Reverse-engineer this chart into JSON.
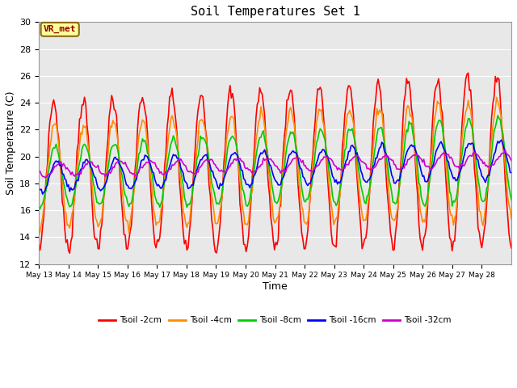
{
  "title": "Soil Temperatures Set 1",
  "xlabel": "Time",
  "ylabel": "Soil Temperature (C)",
  "ylim": [
    12,
    30
  ],
  "fig_bg_color": "#ffffff",
  "plot_bg_color": "#e8e8e8",
  "annotation_text": "VR_met",
  "annotation_box_color": "#ffff99",
  "annotation_box_edge": "#8b6914",
  "x_tick_labels": [
    "May 13",
    "May 14",
    "May 15",
    "May 16",
    "May 17",
    "May 18",
    "May 19",
    "May 20",
    "May 21",
    "May 22",
    "May 23",
    "May 24",
    "May 25",
    "May 26",
    "May 27",
    "May 28"
  ],
  "series": {
    "Tsoil -2cm": {
      "color": "#ff0000",
      "linewidth": 1.2
    },
    "Tsoil -4cm": {
      "color": "#ff8c00",
      "linewidth": 1.2
    },
    "Tsoil -8cm": {
      "color": "#00cc00",
      "linewidth": 1.2
    },
    "Tsoil -16cm": {
      "color": "#0000ff",
      "linewidth": 1.2
    },
    "Tsoil -32cm": {
      "color": "#cc00cc",
      "linewidth": 1.2
    }
  },
  "legend_order": [
    "Tsoil -2cm",
    "Tsoil -4cm",
    "Tsoil -8cm",
    "Tsoil -16cm",
    "Tsoil -32cm"
  ]
}
